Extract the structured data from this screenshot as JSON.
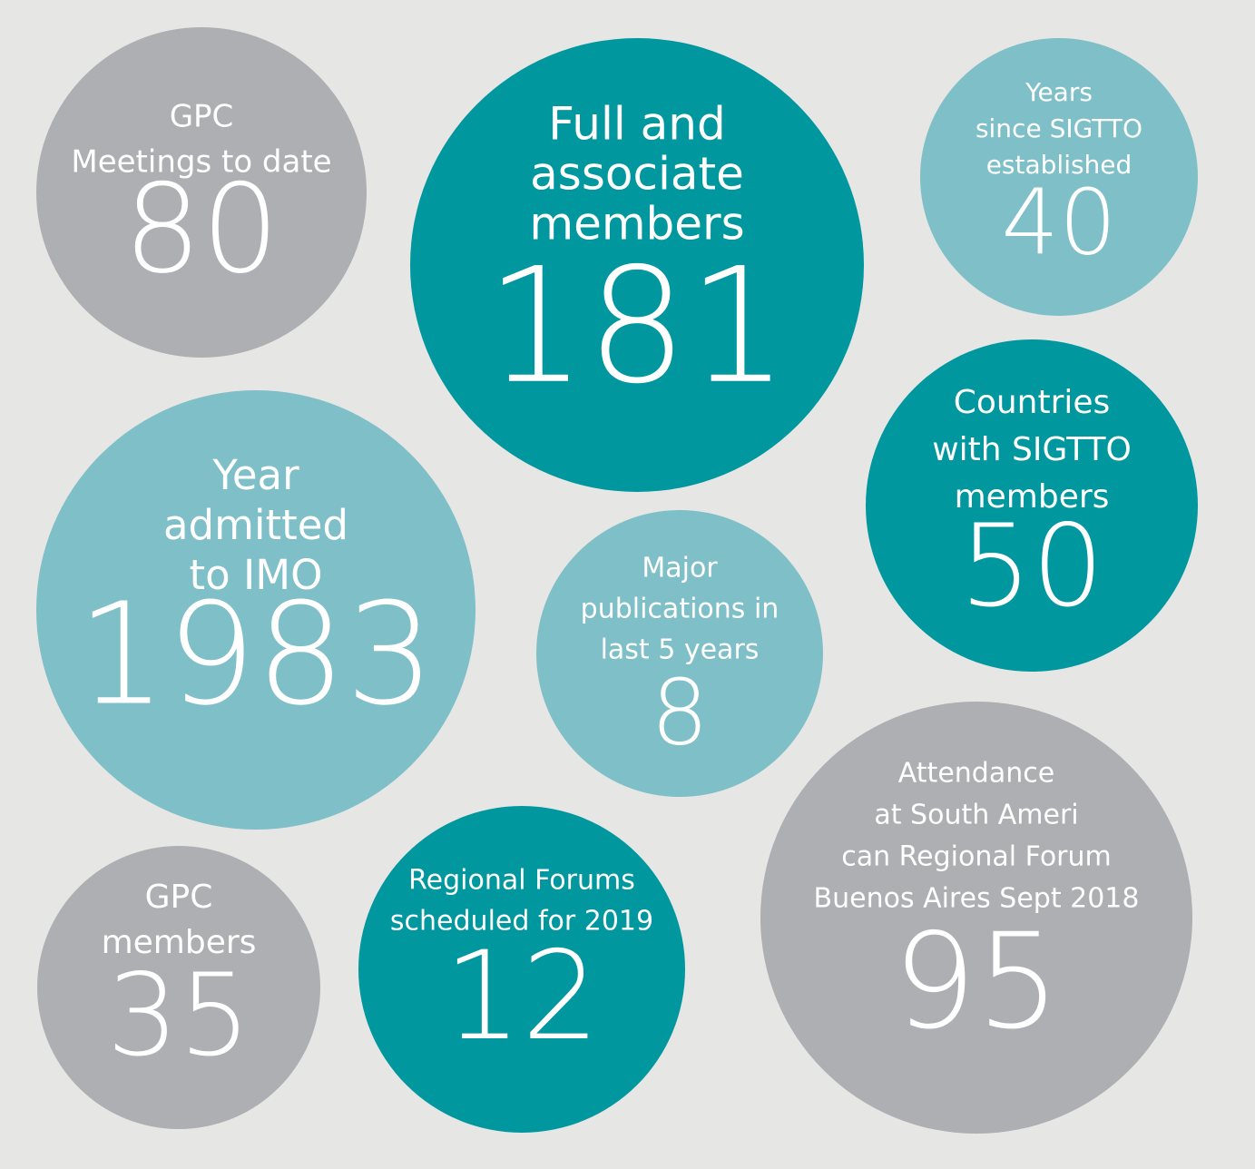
{
  "stats": [
    {
      "label": [
        "GPC",
        "Meetings to date"
      ],
      "value": 80
    },
    {
      "label": [
        "Full and",
        "associate",
        "members"
      ],
      "value": 181
    },
    {
      "label": [
        "Years",
        "since SIGTTO",
        "established"
      ],
      "value": 40
    },
    {
      "label": [
        "Countries",
        "with SIGTTO",
        "members"
      ],
      "value": 50
    },
    {
      "label": [
        "Year",
        "admitted",
        "to IMO"
      ],
      "value": 1983
    },
    {
      "label": [
        "Major",
        "publications in",
        "last 5 years"
      ],
      "value": 8
    },
    {
      "label": [
        "GPC",
        "members"
      ],
      "value": 35
    },
    {
      "label": [
        "Regional Forums",
        "scheduled for 2019"
      ],
      "value": 12
    },
    {
      "label": [
        "Attendance",
        "at South Ameri",
        "can Regional Forum",
        "Buenos Aires Sept 2018"
      ],
      "value": 95
    }
  ]
}
